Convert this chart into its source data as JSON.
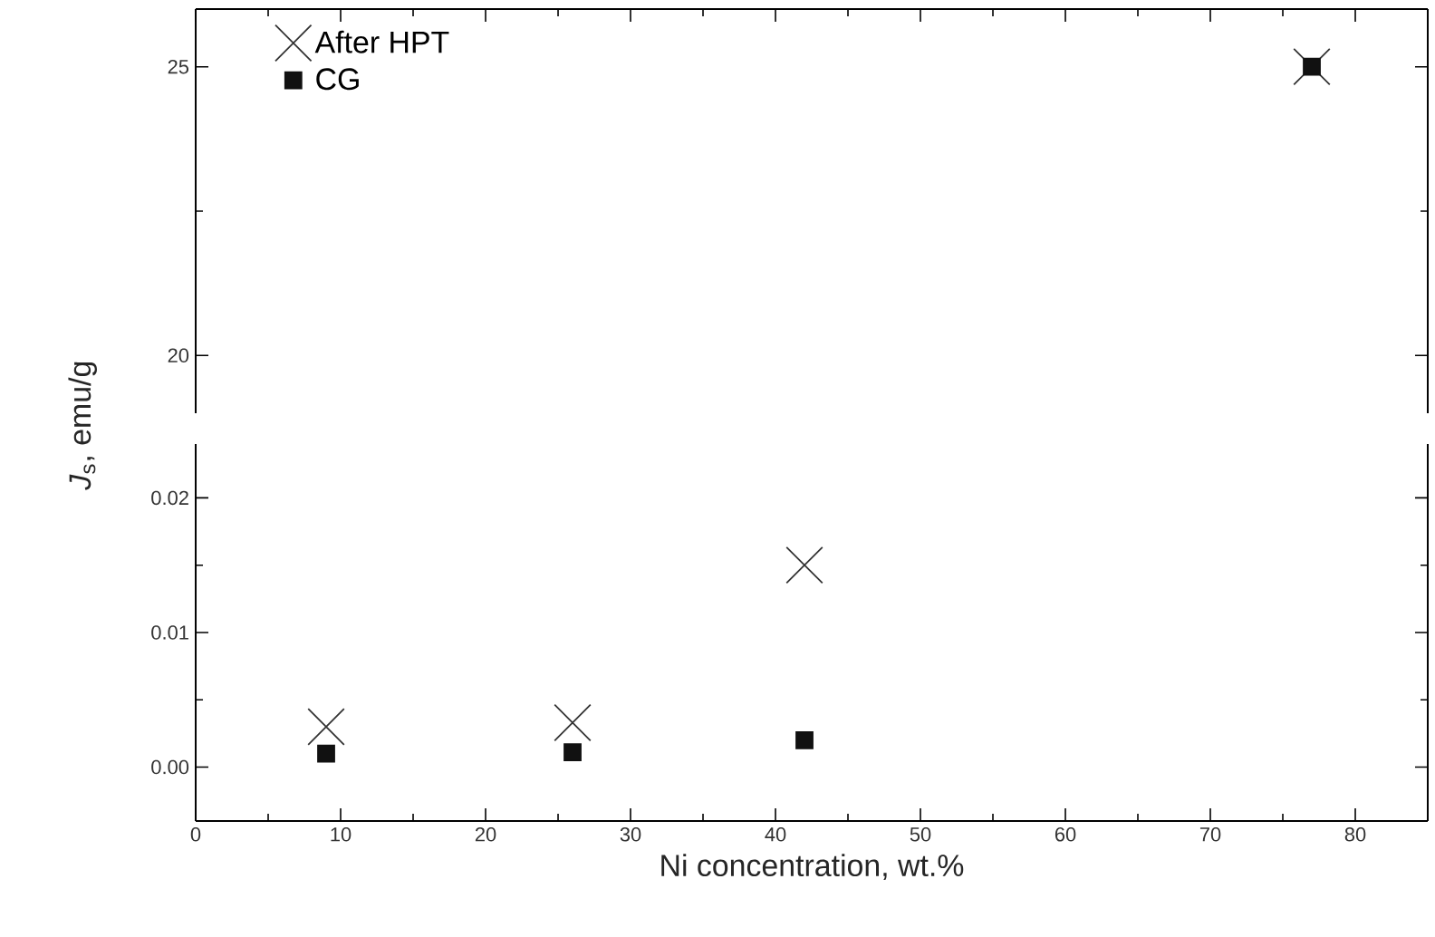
{
  "chart_data": [
    {
      "type": "scatter",
      "xlim": [
        0,
        85
      ],
      "xticks": [
        0,
        10,
        20,
        30,
        40,
        50,
        60,
        70,
        80
      ],
      "ylim": [
        19,
        26
      ],
      "yticks": [
        20,
        25
      ],
      "tick_labels": "y",
      "legend": "top left",
      "series": [
        {
          "name": "After HPT",
          "color": "#333333",
          "marker": "cross",
          "x": [
            77
          ],
          "values": [
            25
          ]
        },
        {
          "name": "CG",
          "color": "#111111",
          "marker": "square",
          "x": [
            77
          ],
          "values": [
            25
          ]
        }
      ]
    },
    {
      "type": "scatter",
      "xlim": [
        0,
        85
      ],
      "xticks": [
        0,
        10,
        20,
        30,
        40,
        50,
        60,
        70,
        80
      ],
      "ylim": [
        -0.004,
        0.024
      ],
      "yticks": [
        {
          "value": 0,
          "label": "0.00"
        },
        {
          "value": 0.01,
          "label": "0.01"
        },
        {
          "value": 0.02,
          "label": "0.02"
        }
      ],
      "xlabel": "Ni concentration, wt.%",
      "ylabel": "*J*$_{s}$, emu/g",
      "series": [
        {
          "color": "#333333",
          "marker": "cross",
          "x": [
            9,
            26,
            42
          ],
          "values": [
            0.003,
            0.0033,
            0.015
          ]
        },
        {
          "color": "#111111",
          "marker": "square",
          "x": [
            9,
            26,
            42
          ],
          "values": [
            0.001,
            0.0011,
            0.002
          ]
        }
      ]
    }
  ]
}
